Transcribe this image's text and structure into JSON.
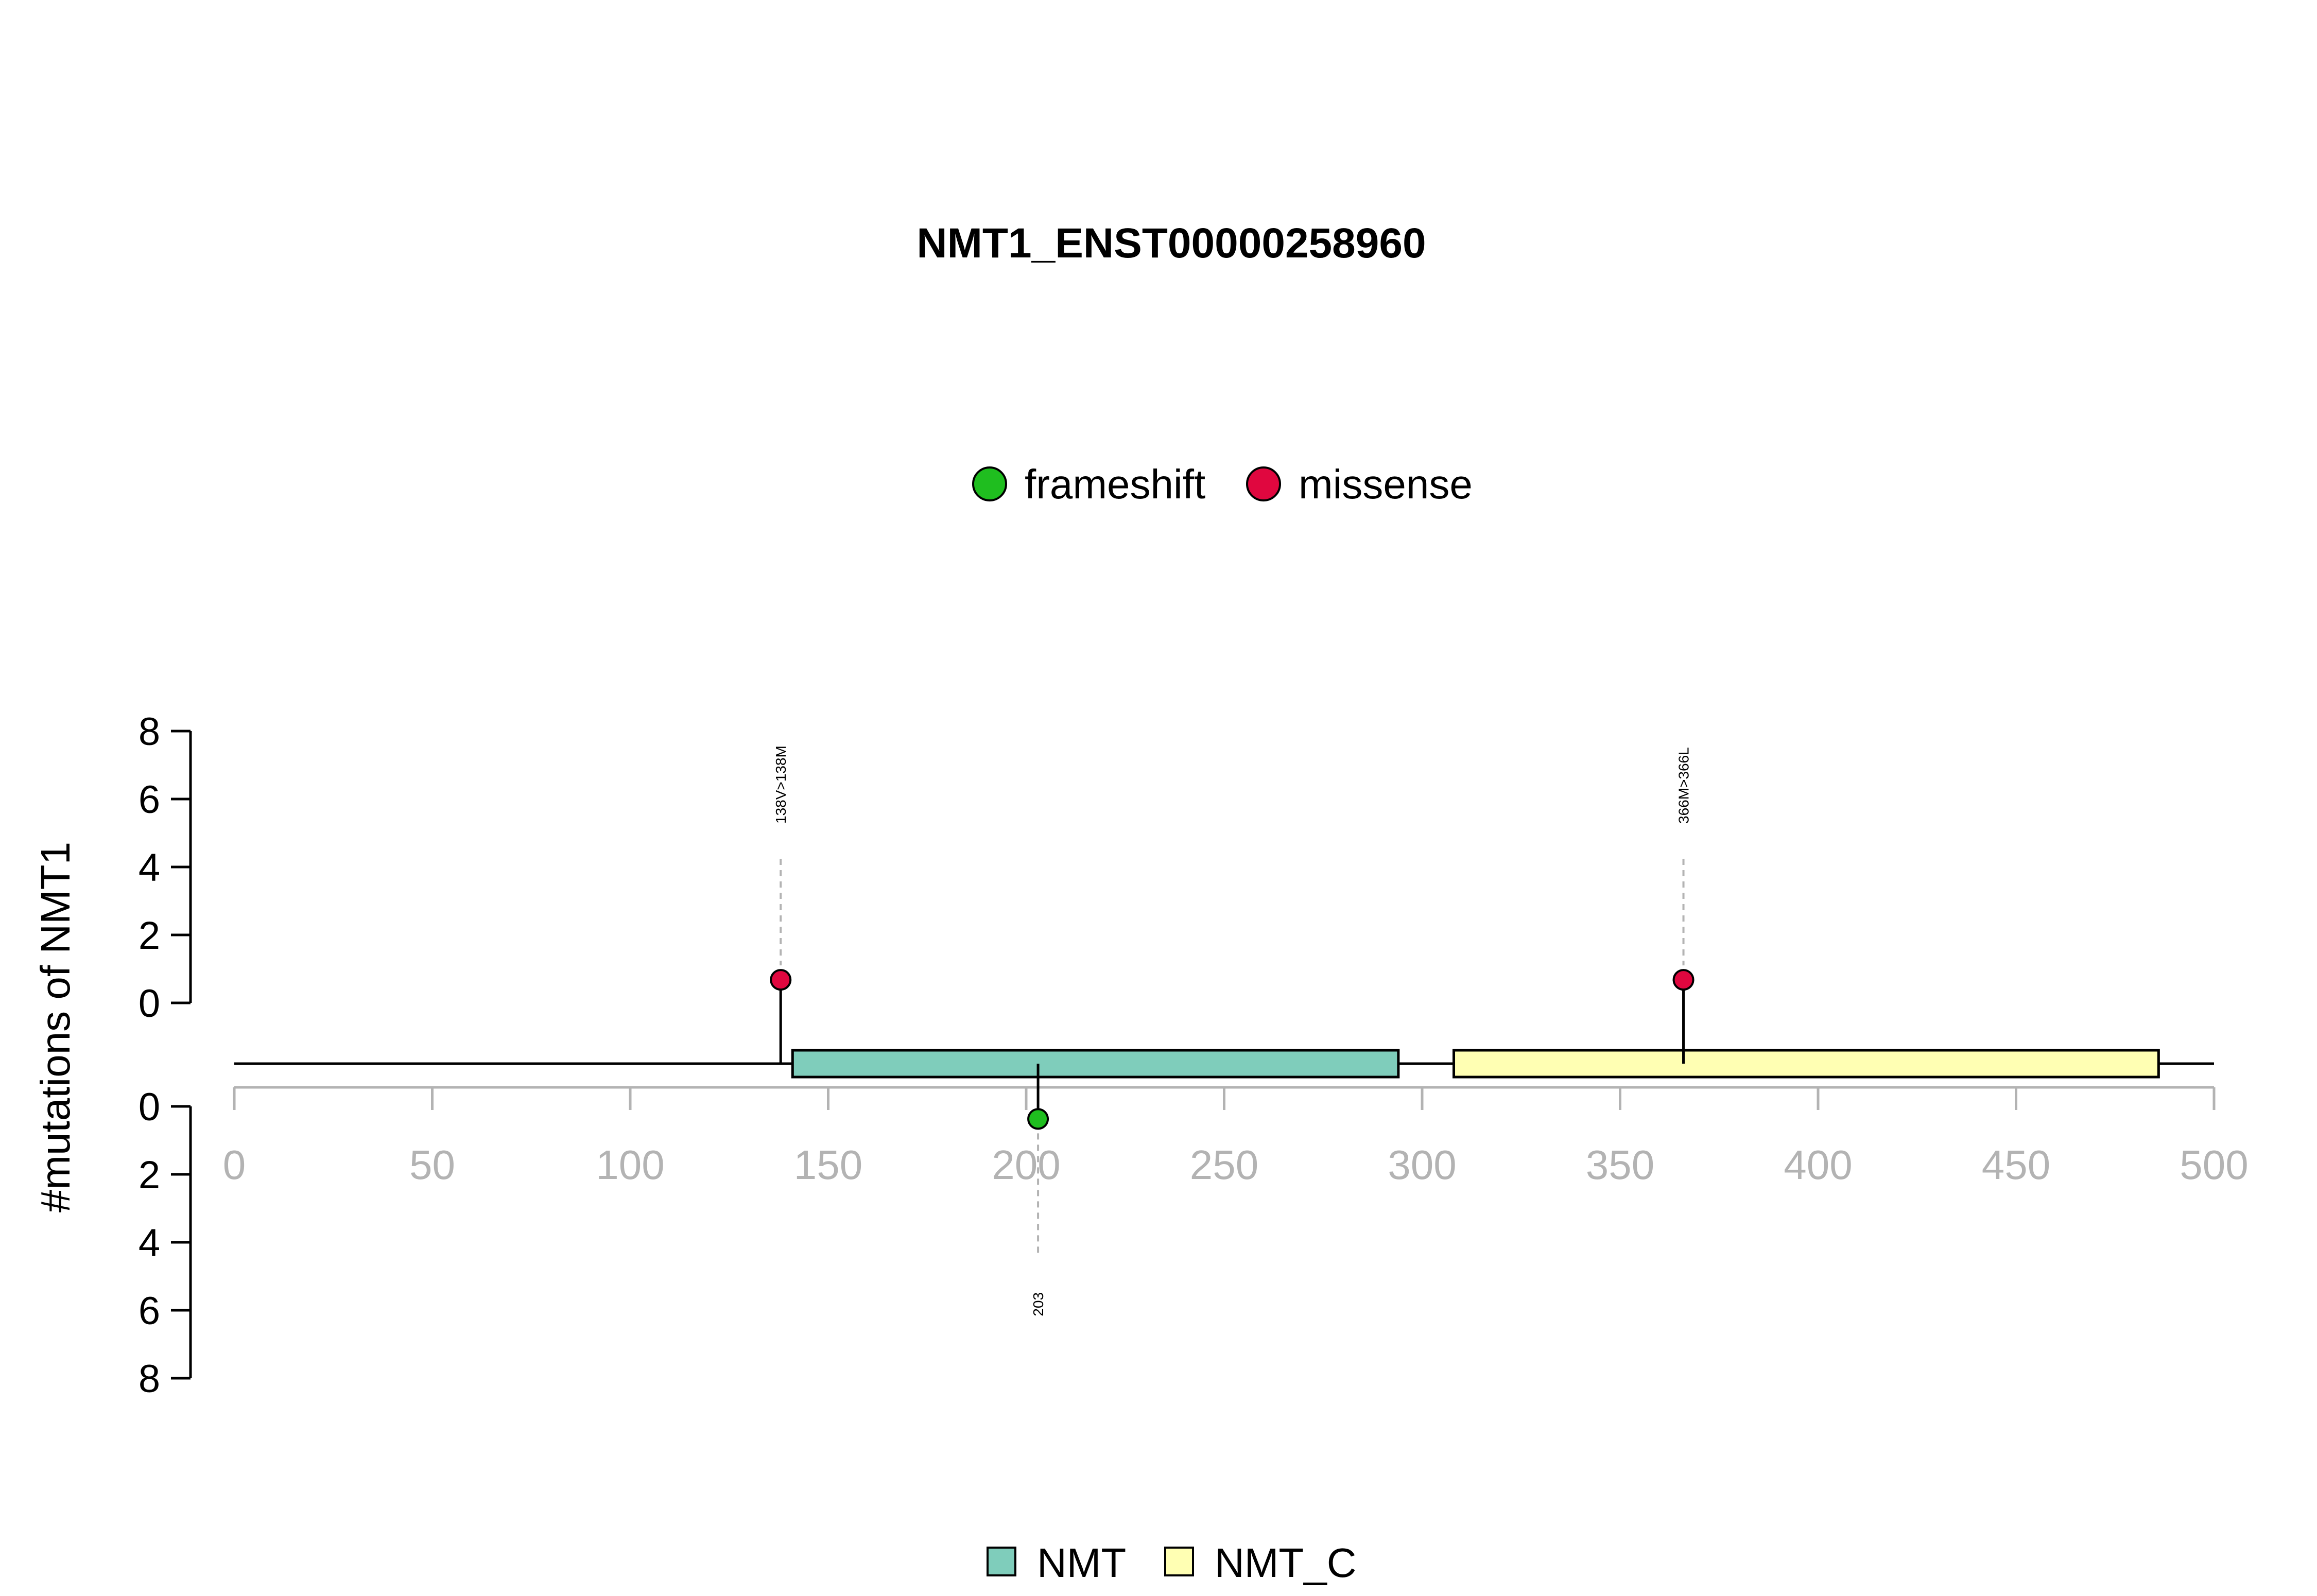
{
  "chart_data": {
    "type": "lollipop",
    "title": "NMT1_ENST00000258960",
    "ylabel": "#mutations of NMT1",
    "protein_length": 496,
    "xlim": [
      0,
      500
    ],
    "x_ticks": [
      0,
      50,
      100,
      150,
      200,
      250,
      300,
      350,
      400,
      450,
      500
    ],
    "y_ticks": [
      0,
      2,
      4,
      6,
      8
    ],
    "mutation_legend": [
      {
        "name": "frameshift",
        "color": "#1fbe1f"
      },
      {
        "name": "missense",
        "color": "#e0073f"
      }
    ],
    "domain_legend": [
      {
        "name": "NMT",
        "color": "#7fcdbb"
      },
      {
        "name": "NMT_C",
        "color": "#ffffb3"
      }
    ],
    "domains": [
      {
        "name": "NMT",
        "start": 141,
        "end": 294,
        "color": "#7fcdbb"
      },
      {
        "name": "NMT_C",
        "start": 308,
        "end": 486,
        "color": "#ffffb3"
      }
    ],
    "mutations": [
      {
        "position": 138,
        "count": 1,
        "type": "missense",
        "label": "138V>138M",
        "side": "top"
      },
      {
        "position": 366,
        "count": 1,
        "type": "missense",
        "label": "366M>366L",
        "side": "top"
      },
      {
        "position": 203,
        "count": 1,
        "type": "frameshift",
        "label": "203",
        "side": "bottom"
      }
    ]
  }
}
